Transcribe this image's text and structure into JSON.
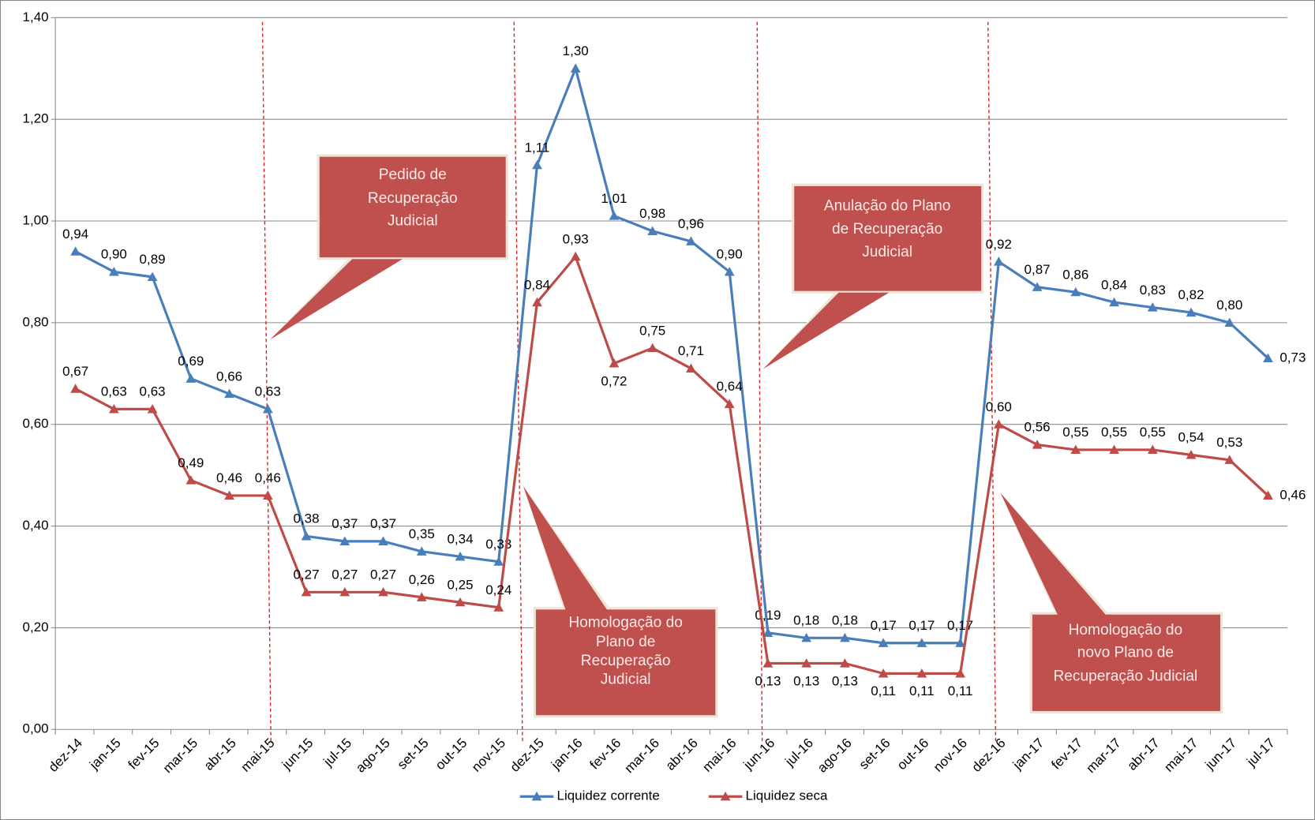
{
  "chart_data": {
    "type": "line",
    "categories": [
      "dez-14",
      "jan-15",
      "fev-15",
      "mar-15",
      "abr-15",
      "mai-15",
      "jun-15",
      "jul-15",
      "ago-15",
      "set-15",
      "out-15",
      "nov-15",
      "dez-15",
      "jan-16",
      "fev-16",
      "mar-16",
      "abr-16",
      "mai-16",
      "jun-16",
      "jul-16",
      "ago-16",
      "set-16",
      "out-16",
      "nov-16",
      "dez-16",
      "jan-17",
      "fev-17",
      "mar-17",
      "abr-17",
      "mai-17",
      "jun-17",
      "jul-17"
    ],
    "series": [
      {
        "name": "Liquidez corrente",
        "color": "#4a7ebb",
        "values": [
          0.94,
          0.9,
          0.89,
          0.69,
          0.66,
          0.63,
          0.38,
          0.37,
          0.37,
          0.35,
          0.34,
          0.33,
          1.11,
          1.3,
          1.01,
          0.98,
          0.96,
          0.9,
          0.19,
          0.18,
          0.18,
          0.17,
          0.17,
          0.17,
          0.92,
          0.87,
          0.86,
          0.84,
          0.83,
          0.82,
          0.8,
          0.73
        ],
        "value_labels": [
          "0,94",
          "0,90",
          "0,89",
          "0,69",
          "0,66",
          "0,63",
          "0,38",
          "0,37",
          "0,37",
          "0,35",
          "0,34",
          "0,33",
          "1,11",
          "1,30",
          "1,01",
          "0,98",
          "0,96",
          "0,90",
          "0,19",
          "0,18",
          "0,18",
          "0,17",
          "0,17",
          "0,17",
          "0,92",
          "0,87",
          "0,86",
          "0,84",
          "0,83",
          "0,82",
          "0,80",
          "0,73"
        ]
      },
      {
        "name": "Liquidez seca",
        "color": "#be4b48",
        "values": [
          0.67,
          0.63,
          0.63,
          0.49,
          0.46,
          0.46,
          0.27,
          0.27,
          0.27,
          0.26,
          0.25,
          0.24,
          0.84,
          0.93,
          0.72,
          0.75,
          0.71,
          0.64,
          0.13,
          0.13,
          0.13,
          0.11,
          0.11,
          0.11,
          0.6,
          0.56,
          0.55,
          0.55,
          0.55,
          0.54,
          0.53,
          0.46
        ],
        "value_labels": [
          "0,67",
          "0,63",
          "0,63",
          "0,49",
          "0,46",
          "0,46",
          "0,27",
          "0,27",
          "0,27",
          "0,26",
          "0,25",
          "0,24",
          "0,84",
          "0,93",
          "0,72",
          "0,75",
          "0,71",
          "0,64",
          "0,13",
          "0,13",
          "0,13",
          "0,11",
          "0,11",
          "0,11",
          "0,60",
          "0,56",
          "0,55",
          "0,55",
          "0,55",
          "0,54",
          "0,53",
          "0,46"
        ]
      }
    ],
    "ylim": [
      0,
      1.4
    ],
    "yticks": [
      {
        "value": 0,
        "label": "0,00"
      },
      {
        "value": 0.2,
        "label": "0,20"
      },
      {
        "value": 0.4,
        "label": "0,40"
      },
      {
        "value": 0.6,
        "label": "0,60"
      },
      {
        "value": 0.8,
        "label": "0,80"
      },
      {
        "value": 1.0,
        "label": "1,00"
      },
      {
        "value": 1.2,
        "label": "1,20"
      },
      {
        "value": 1.4,
        "label": "1,40"
      }
    ],
    "grid": true,
    "legend": "bottom",
    "annotations": [
      {
        "lines": [
          "Pedido de",
          "Recuperação",
          "Judicial"
        ]
      },
      {
        "lines": [
          "Homologação do",
          "Plano de",
          "Recuperação",
          "Judicial"
        ]
      },
      {
        "lines": [
          "Anulação do Plano",
          "de Recuperação",
          "Judicial"
        ]
      },
      {
        "lines": [
          "Homologação do",
          "novo Plano de",
          "Recuperação Judicial"
        ]
      }
    ]
  }
}
